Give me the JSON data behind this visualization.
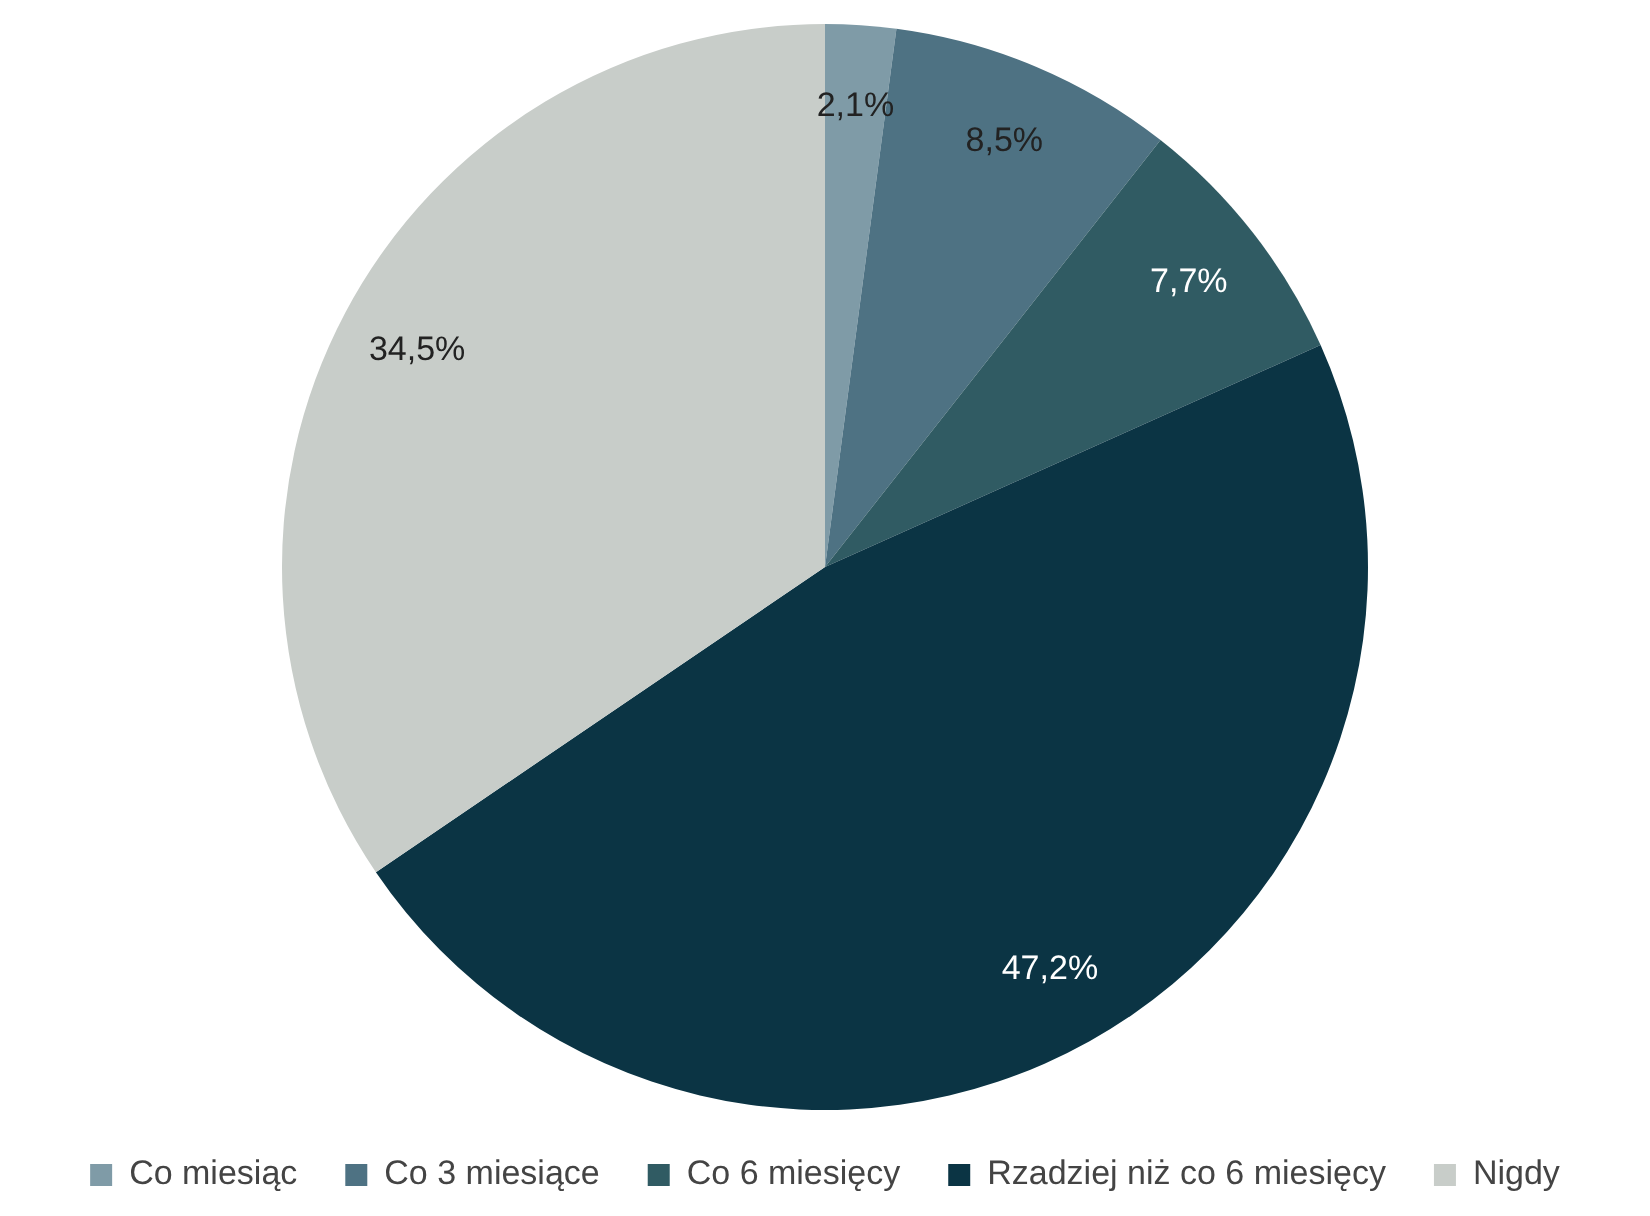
{
  "chart_data": {
    "type": "pie",
    "categories": [
      "Co miesiąc",
      "Co 3 miesiące",
      "Co 6 miesięcy",
      "Rzadziej niż co 6 miesięcy",
      "Nigdy"
    ],
    "values": [
      2.1,
      8.5,
      7.7,
      47.2,
      34.5
    ],
    "colors": [
      "#7f9ba7",
      "#4e7283",
      "#305b63",
      "#0b3444",
      "#c8cdc9"
    ],
    "value_labels": [
      "2,1%",
      "8,5%",
      "7,7%",
      "47,2%",
      "34,5%"
    ],
    "legend": "bottom"
  }
}
